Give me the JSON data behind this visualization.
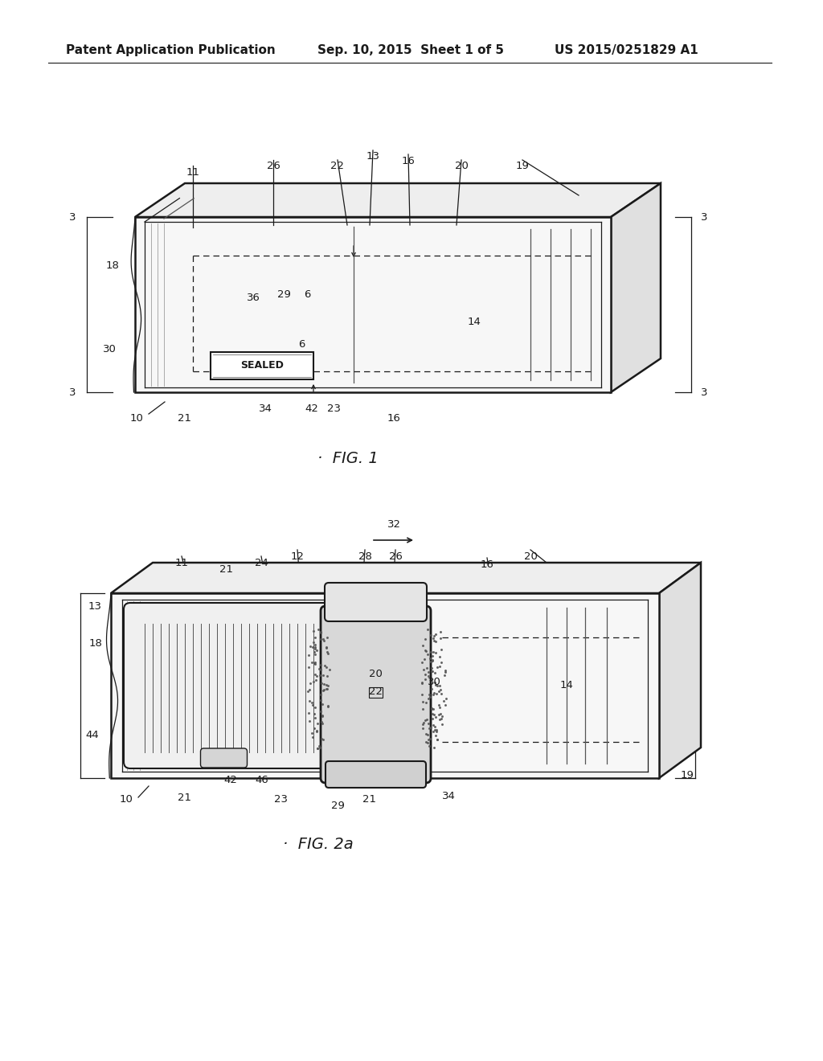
{
  "background_color": "#ffffff",
  "header_left": "Patent Application Publication",
  "header_center": "Sep. 10, 2015  Sheet 1 of 5",
  "header_right": "US 2015/0251829 A1",
  "fig1_label": "FIG. 1",
  "fig2_label": "FIG. 2a",
  "header_fontsize": 11,
  "label_fontsize": 9.5,
  "fig_label_fontsize": 14
}
